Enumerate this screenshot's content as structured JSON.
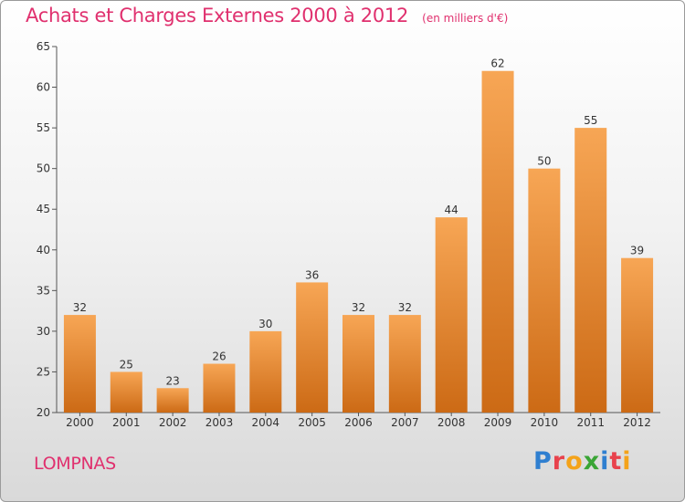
{
  "chart_data": {
    "type": "bar",
    "title": "Achats et Charges Externes 2000 à 2012",
    "subtitle": "(en milliers d'€)",
    "categories": [
      "2000",
      "2001",
      "2002",
      "2003",
      "2004",
      "2005",
      "2006",
      "2007",
      "2008",
      "2009",
      "2010",
      "2011",
      "2012"
    ],
    "values": [
      32,
      25,
      23,
      26,
      30,
      36,
      32,
      32,
      44,
      62,
      50,
      55,
      39
    ],
    "ylim": [
      20,
      65
    ],
    "yticks": [
      20,
      25,
      30,
      35,
      40,
      45,
      50,
      55,
      60,
      65
    ],
    "xlabel": "",
    "ylabel": "",
    "grid": false,
    "colors": {
      "bar_top": "#f7a655",
      "bar_bottom": "#cc6a15",
      "title": "#e0306e"
    }
  },
  "footer": {
    "commune": "LOMPNAS",
    "logo_letters": [
      {
        "ch": "P",
        "color": "#2f7fd0"
      },
      {
        "ch": "r",
        "color": "#e8424c"
      },
      {
        "ch": "o",
        "color": "#f4a31a"
      },
      {
        "ch": "x",
        "color": "#3aa535"
      },
      {
        "ch": "i",
        "color": "#2f7fd0"
      },
      {
        "ch": "t",
        "color": "#e8424c"
      },
      {
        "ch": "i",
        "color": "#f4a31a"
      }
    ]
  }
}
